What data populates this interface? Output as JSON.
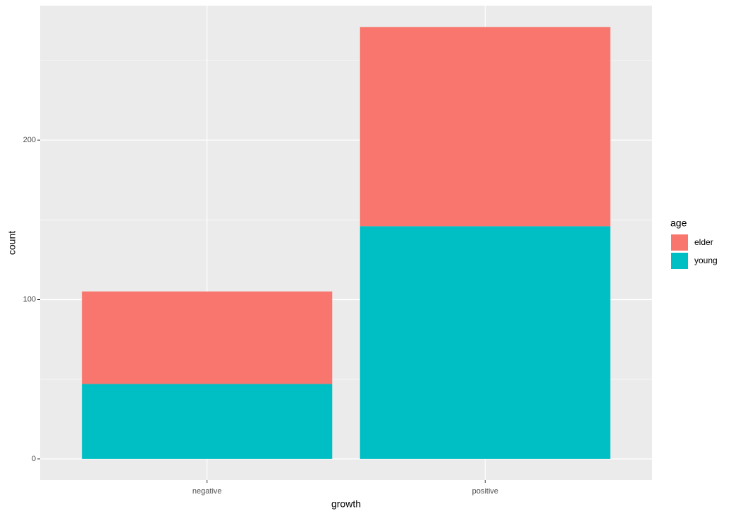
{
  "chart_data": {
    "type": "stacked_bar",
    "x_label": "growth",
    "y_label": "count",
    "categories": [
      "negative",
      "positive"
    ],
    "series": [
      {
        "name": "elder",
        "color": "#f8766d",
        "values": [
          58,
          125
        ]
      },
      {
        "name": "young",
        "color": "#00bfc4",
        "values": [
          47,
          146
        ]
      }
    ],
    "ylim": [
      -13.3,
      284.4
    ],
    "yticks": [
      0,
      100,
      200
    ],
    "grid": true,
    "legend_title": "age",
    "legend": "right"
  }
}
